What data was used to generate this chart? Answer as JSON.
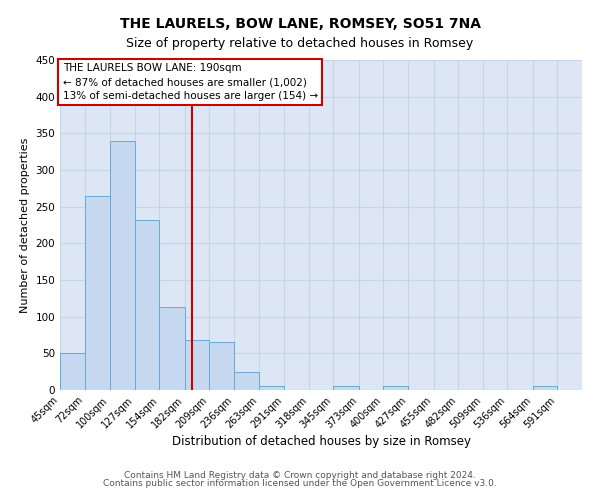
{
  "title": "THE LAURELS, BOW LANE, ROMSEY, SO51 7NA",
  "subtitle": "Size of property relative to detached houses in Romsey",
  "xlabel": "Distribution of detached houses by size in Romsey",
  "ylabel": "Number of detached properties",
  "bar_edges": [
    45,
    72,
    100,
    127,
    154,
    182,
    209,
    236,
    263,
    291,
    318,
    345,
    373,
    400,
    427,
    455,
    482,
    509,
    536,
    564,
    591,
    618
  ],
  "bar_heights": [
    50,
    265,
    340,
    232,
    113,
    68,
    65,
    25,
    6,
    0,
    0,
    5,
    0,
    5,
    0,
    0,
    0,
    0,
    0,
    5,
    0
  ],
  "bar_color": "#c5d8f0",
  "bar_edgecolor": "#6aaad4",
  "bar_linewidth": 0.7,
  "grid_color": "#c8d4e8",
  "background_color": "#dce6f5",
  "red_line_x": 190,
  "red_line_color": "#cc0000",
  "annotation_line1": "THE LAURELS BOW LANE: 190sqm",
  "annotation_line2": "← 87% of detached houses are smaller (1,002)",
  "annotation_line3": "13% of semi-detached houses are larger (154) →",
  "annotation_box_color": "#cc0000",
  "ylim": [
    0,
    450
  ],
  "yticks": [
    0,
    50,
    100,
    150,
    200,
    250,
    300,
    350,
    400,
    450
  ],
  "tick_labels": [
    "45sqm",
    "72sqm",
    "100sqm",
    "127sqm",
    "154sqm",
    "182sqm",
    "209sqm",
    "236sqm",
    "263sqm",
    "291sqm",
    "318sqm",
    "345sqm",
    "373sqm",
    "400sqm",
    "427sqm",
    "455sqm",
    "482sqm",
    "509sqm",
    "536sqm",
    "564sqm",
    "591sqm"
  ],
  "footer_line1": "Contains HM Land Registry data © Crown copyright and database right 2024.",
  "footer_line2": "Contains public sector information licensed under the Open Government Licence v3.0.",
  "title_fontsize": 10,
  "subtitle_fontsize": 9,
  "xlabel_fontsize": 8.5,
  "ylabel_fontsize": 8,
  "tick_fontsize": 7,
  "annot_fontsize": 7.5,
  "footer_fontsize": 6.5
}
